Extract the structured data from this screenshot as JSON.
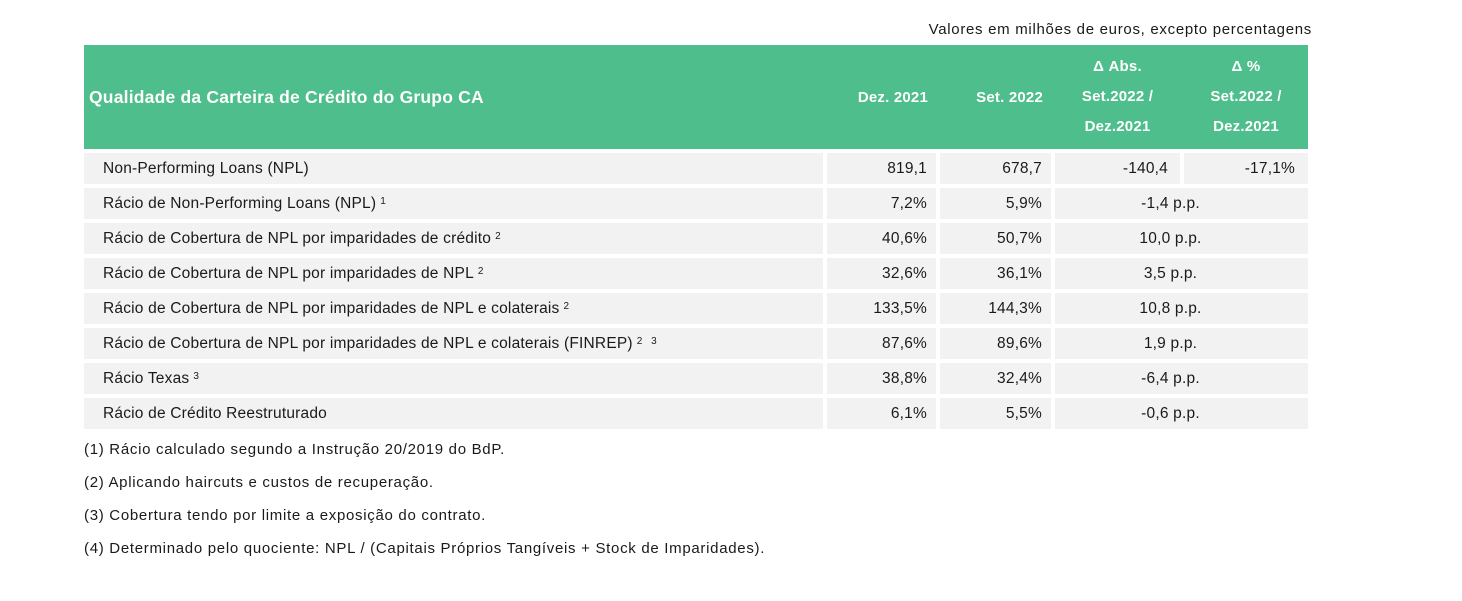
{
  "note": "Valores em milhões de euros, excepto percentagens",
  "colors": {
    "header_bg": "#4DBE8C",
    "header_text": "#FFFFFF",
    "cell_bg": "#F2F2F2",
    "body_text": "#1A1A1A"
  },
  "table": {
    "title": "Qualidade da Carteira de Crédito do Grupo CA",
    "columns": {
      "dez2021": "Dez. 2021",
      "set2022": "Set. 2022",
      "delta_abs_line1": "Δ Abs.",
      "delta_abs_line2": "Set.2022 /",
      "delta_abs_line3": "Dez.2021",
      "delta_pct_line1": "Δ %",
      "delta_pct_line2": "Set.2022 /",
      "delta_pct_line3": "Dez.2021"
    },
    "rows": [
      {
        "label": "Non-Performing Loans (NPL)",
        "sup": "",
        "dez2021": "819,1",
        "set2022": "678,7",
        "delta_abs": "-140,4",
        "delta_pct": "-17,1%"
      },
      {
        "label": "Rácio de Non-Performing Loans (NPL)",
        "sup": "1",
        "dez2021": "7,2%",
        "set2022": "5,9%",
        "delta": "-1,4 p.p."
      },
      {
        "label": "Rácio de Cobertura de NPL por imparidades de crédito",
        "sup": "2",
        "dez2021": "40,6%",
        "set2022": "50,7%",
        "delta": "10,0 p.p."
      },
      {
        "label": "Rácio de Cobertura de NPL por imparidades de NPL",
        "sup": "2",
        "dez2021": "32,6%",
        "set2022": "36,1%",
        "delta": "3,5 p.p."
      },
      {
        "label": "Rácio de Cobertura de NPL por imparidades de NPL e colaterais",
        "sup": "2",
        "dez2021": "133,5%",
        "set2022": "144,3%",
        "delta": "10,8 p.p."
      },
      {
        "label": "Rácio de Cobertura de NPL por imparidades de NPL e colaterais (FINREP)",
        "sup": "2 3",
        "dez2021": "87,6%",
        "set2022": "89,6%",
        "delta": "1,9 p.p."
      },
      {
        "label": "Rácio Texas",
        "sup": "3",
        "dez2021": "38,8%",
        "set2022": "32,4%",
        "delta": "-6,4 p.p."
      },
      {
        "label": "Rácio de Crédito Reestruturado",
        "sup": "",
        "dez2021": "6,1%",
        "set2022": "5,5%",
        "delta": "-0,6 p.p."
      }
    ]
  },
  "footnotes": [
    "(1) Rácio calculado segundo a Instrução 20/2019 do BdP.",
    "(2) Aplicando haircuts e custos de recuperação.",
    "(3) Cobertura tendo por limite a exposição do contrato.",
    "(4) Determinado pelo quociente: NPL / (Capitais Próprios Tangíveis + Stock de Imparidades)."
  ]
}
